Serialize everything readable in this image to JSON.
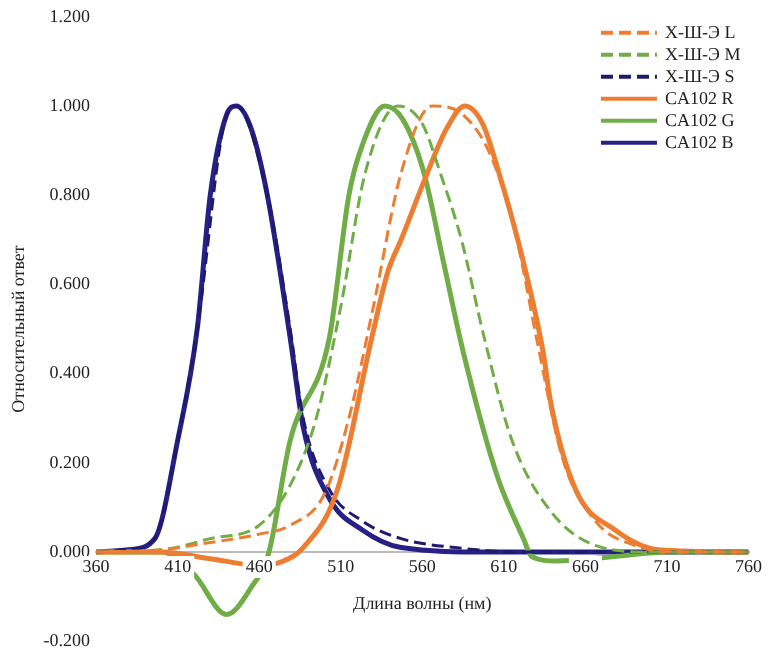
{
  "chart_data": {
    "type": "line",
    "xlabel": "Длина волны (нм)",
    "ylabel": "Относительный ответ",
    "xlim": [
      360,
      760
    ],
    "xticks": [
      360,
      410,
      460,
      510,
      560,
      610,
      660,
      710,
      760
    ],
    "ylim": [
      -0.2,
      1.2
    ],
    "yticks": [
      {
        "value": -0.2,
        "label": "-0.200"
      },
      {
        "value": 0,
        "label": "0.000"
      },
      {
        "value": 0.2,
        "label": "0.200"
      },
      {
        "value": 0.4,
        "label": "0.400"
      },
      {
        "value": 0.6,
        "label": "0.600"
      },
      {
        "value": 0.8,
        "label": "0.800"
      },
      {
        "value": 1,
        "label": "1.000"
      },
      {
        "value": 1.2,
        "label": "1.200"
      }
    ],
    "grid": false,
    "legend": "top right",
    "marker": "none",
    "series": [
      {
        "name": "Х-Ш-Э L",
        "color": "#ed7d31",
        "line_style": "dashed",
        "x": [
          360,
          400,
          428,
          460,
          479,
          500,
          515,
          530,
          547,
          566,
          585,
          603,
          618,
          630,
          646,
          666,
          690,
          720,
          760
        ],
        "values": [
          0,
          0.005,
          0.02,
          0.04,
          0.06,
          0.13,
          0.3,
          0.55,
          0.85,
          1.0,
          0.98,
          0.88,
          0.7,
          0.48,
          0.21,
          0.07,
          0.015,
          0,
          0
        ]
      },
      {
        "name": "Х-Ш-Э M",
        "color": "#70ad47",
        "line_style": "dashed",
        "x": [
          360,
          400,
          430,
          460,
          479,
          495,
          510,
          525,
          545,
          560,
          571,
          584,
          598,
          615,
          639,
          666,
          700,
          760
        ],
        "values": [
          0,
          0.005,
          0.03,
          0.06,
          0.15,
          0.3,
          0.55,
          0.85,
          1.0,
          0.96,
          0.85,
          0.7,
          0.48,
          0.25,
          0.09,
          0.015,
          0,
          0
        ]
      },
      {
        "name": "Х-Ш-Э S",
        "color": "#1f1a6e",
        "line_style": "dashed",
        "x": [
          360,
          380,
          396,
          410,
          422,
          440,
          446,
          465,
          479,
          487,
          503,
          523,
          547,
          580,
          620,
          760
        ],
        "values": [
          0,
          0.005,
          0.03,
          0.25,
          0.5,
          0.98,
          1.0,
          0.8,
          0.5,
          0.3,
          0.14,
          0.07,
          0.03,
          0.01,
          0,
          0
        ]
      },
      {
        "name": "CA102 R",
        "color": "#ed7d31",
        "line_style": "solid",
        "x": [
          360,
          400,
          430,
          460,
          475,
          487,
          508,
          529,
          539,
          547,
          562,
          575,
          586,
          597,
          607,
          622,
          634,
          639,
          654,
          678,
          705,
          760
        ],
        "values": [
          0,
          0,
          -0.015,
          -0.03,
          -0.02,
          0.01,
          0.14,
          0.48,
          0.63,
          0.7,
          0.84,
          0.95,
          1.0,
          0.96,
          0.85,
          0.65,
          0.45,
          0.33,
          0.14,
          0.05,
          0.005,
          0
        ]
      },
      {
        "name": "CA102 G",
        "color": "#70ad47",
        "line_style": "solid",
        "x": [
          360,
          400,
          420,
          440,
          455,
          466,
          479,
          503,
          515,
          523,
          537,
          548,
          561,
          573,
          585,
          606,
          622,
          627,
          642,
          678,
          710,
          760
        ],
        "values": [
          0,
          0,
          -0.05,
          -0.14,
          -0.08,
          0,
          0.25,
          0.48,
          0.8,
          0.91,
          1.0,
          0.97,
          0.85,
          0.65,
          0.45,
          0.17,
          0.03,
          -0.01,
          -0.02,
          -0.01,
          0,
          0
        ]
      },
      {
        "name": "CA102 B",
        "color": "#262184",
        "line_style": "solid",
        "x": [
          360,
          380,
          396,
          410,
          422,
          430,
          440,
          446,
          455,
          465,
          479,
          487,
          503,
          523,
          547,
          600,
          760
        ],
        "values": [
          0,
          0.005,
          0.03,
          0.25,
          0.5,
          0.8,
          0.98,
          1.0,
          0.95,
          0.8,
          0.48,
          0.28,
          0.12,
          0.05,
          0.01,
          0,
          0
        ]
      }
    ]
  }
}
